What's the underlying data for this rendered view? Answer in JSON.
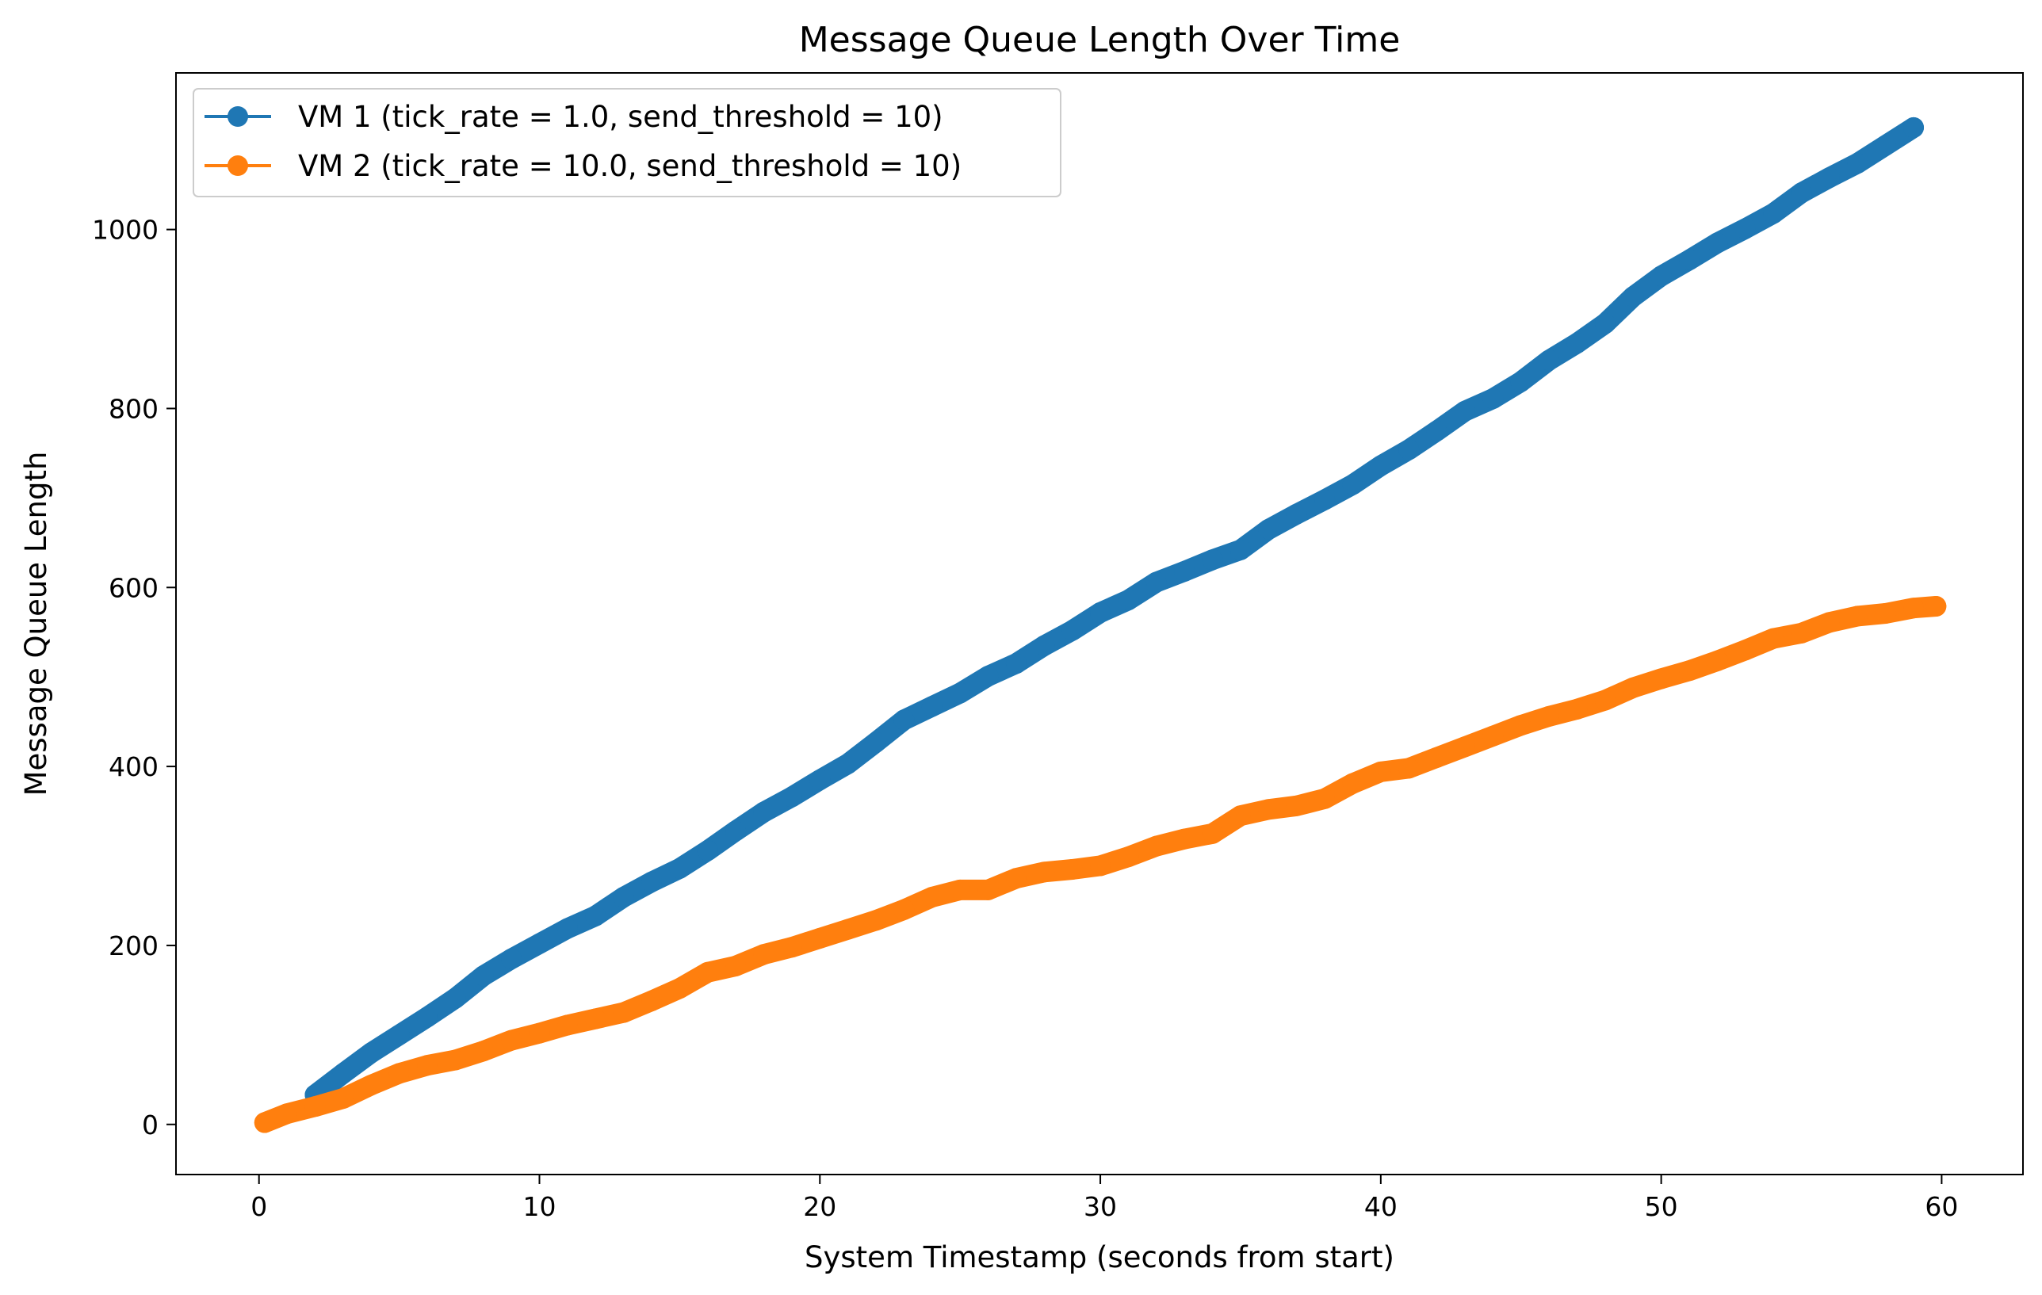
{
  "chart_data": {
    "type": "line",
    "title": "Message Queue Length Over Time",
    "xlabel": "System Timestamp (seconds from start)",
    "ylabel": "Message Queue Length",
    "xlim": [
      -2.96,
      62.9
    ],
    "ylim": [
      -56,
      1175
    ],
    "xticks": [
      0,
      10,
      20,
      30,
      40,
      50,
      60
    ],
    "yticks": [
      0,
      200,
      400,
      600,
      800,
      1000
    ],
    "legend_position": "top-left",
    "grid": false,
    "series": [
      {
        "name": "VM 1 (tick_rate = 1.0, send_threshold = 10)",
        "color": "#1f77b4",
        "marker": "circle",
        "x": [
          2,
          3,
          4,
          5,
          6,
          7,
          8,
          9,
          10,
          11,
          12,
          13,
          14,
          15,
          16,
          17,
          18,
          19,
          20,
          21,
          22,
          23,
          24,
          25,
          26,
          27,
          28,
          29,
          30,
          31,
          32,
          33,
          34,
          35,
          36,
          37,
          38,
          39,
          40,
          41,
          42,
          43,
          44,
          45,
          46,
          47,
          48,
          49,
          50,
          51,
          52,
          53,
          54,
          55,
          56,
          57,
          58,
          59
        ],
        "values": [
          33,
          57,
          80,
          100,
          120,
          141,
          166,
          185,
          202,
          219,
          233,
          254,
          271,
          286,
          306,
          328,
          349,
          366,
          385,
          403,
          427,
          452,
          467,
          482,
          501,
          515,
          535,
          552,
          572,
          586,
          606,
          618,
          631,
          642,
          665,
          682,
          698,
          715,
          736,
          754,
          775,
          797,
          811,
          830,
          854,
          873,
          895,
          925,
          948,
          966,
          985,
          1001,
          1018,
          1041,
          1058,
          1074,
          1094,
          1114
        ]
      },
      {
        "name": "VM 2 (tick_rate = 10.0, send_threshold = 10)",
        "color": "#ff7f0e",
        "marker": "circle",
        "x": [
          0.2,
          1,
          2,
          3,
          4,
          5,
          6,
          7,
          8,
          9,
          10,
          11,
          12,
          13,
          14,
          15,
          16,
          17,
          18,
          19,
          20,
          21,
          22,
          23,
          24,
          25,
          26,
          27,
          28,
          29,
          30,
          31,
          32,
          33,
          34,
          35,
          36,
          37,
          38,
          39,
          40,
          41,
          42,
          43,
          44,
          45,
          46,
          47,
          48,
          49,
          50,
          51,
          52,
          53,
          54,
          55,
          56,
          57,
          58,
          59,
          59.8
        ],
        "values": [
          2,
          12,
          20,
          29,
          44,
          57,
          66,
          72,
          82,
          94,
          102,
          111,
          118,
          125,
          138,
          152,
          170,
          177,
          190,
          198,
          208,
          218,
          228,
          240,
          254,
          262,
          262,
          275,
          282,
          285,
          289,
          299,
          311,
          319,
          325,
          345,
          352,
          356,
          364,
          381,
          394,
          398,
          410,
          422,
          434,
          446,
          456,
          464,
          474,
          488,
          498,
          507,
          518,
          530,
          543,
          549,
          561,
          568,
          571,
          577,
          579
        ]
      }
    ]
  }
}
